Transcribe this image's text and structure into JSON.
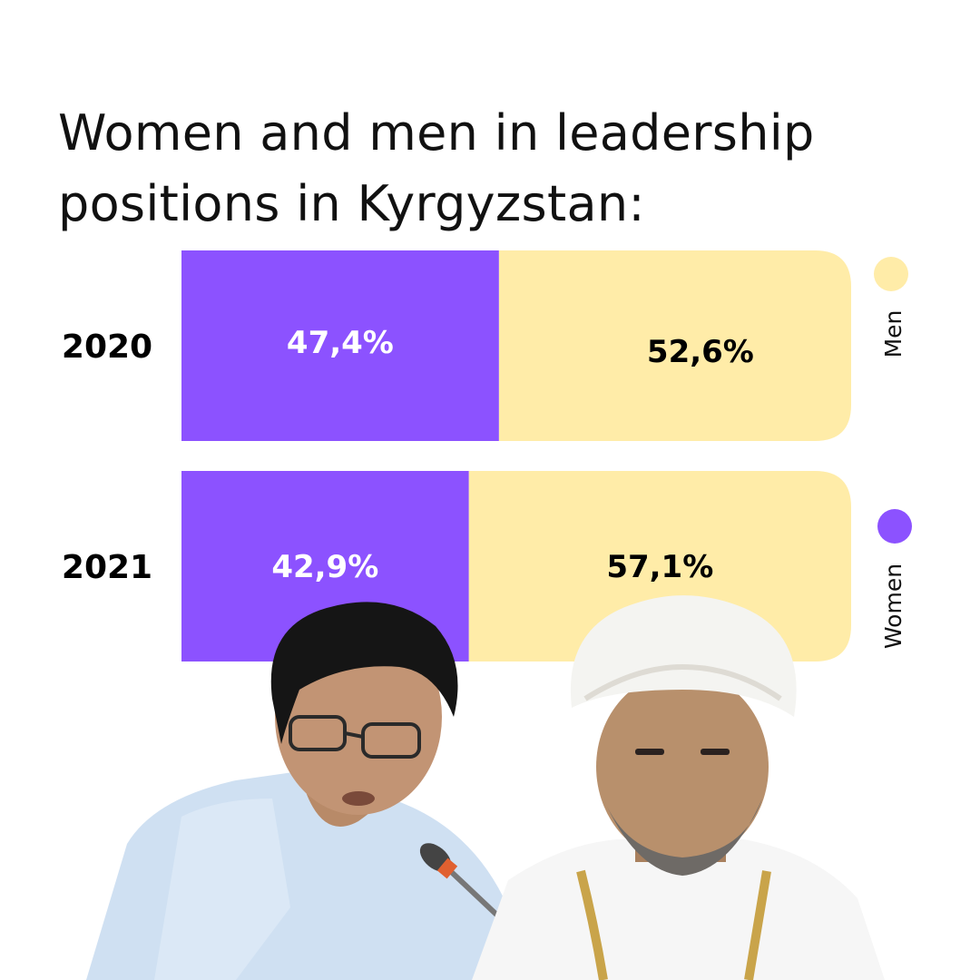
{
  "title_lines": [
    "Women and men in leadership",
    "positions in Kyrgyzstan:"
  ],
  "colors": {
    "women": "#8c52ff",
    "men": "#ffeca8",
    "women_text": "#ffffff",
    "men_text": "#000000"
  },
  "chart_data": {
    "type": "bar",
    "orientation": "horizontal",
    "stacked": true,
    "normalized_to": 100,
    "title": "Women and men in leadership positions in Kyrgyzstan:",
    "categories": [
      "2020",
      "2021"
    ],
    "series": [
      {
        "name": "Women",
        "values": [
          47.4,
          42.9
        ],
        "labels": [
          "47,4%",
          "42,9%"
        ],
        "color": "#8c52ff"
      },
      {
        "name": "Men",
        "values": [
          52.6,
          57.1
        ],
        "labels": [
          "52,6%",
          "57,1%"
        ],
        "color": "#ffeca8"
      }
    ],
    "legend": {
      "placement": "right",
      "orientation": "vertical",
      "items": [
        "Men",
        "Women"
      ]
    }
  },
  "photos": [
    {
      "name": "woman-speaker-photo",
      "icon": "person-photo"
    },
    {
      "name": "man-in-turban-photo",
      "icon": "person-photo"
    }
  ]
}
